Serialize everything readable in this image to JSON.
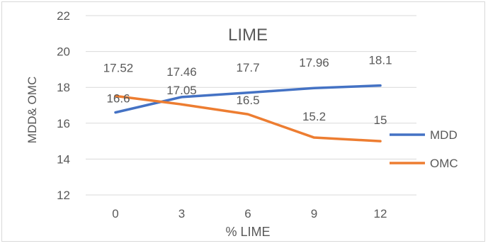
{
  "chart_data": {
    "type": "line",
    "title": "LIME",
    "xlabel": "% LIME",
    "ylabel": "MDD& OMC",
    "categories": [
      "0",
      "3",
      "6",
      "9",
      "12"
    ],
    "ylim": [
      12,
      22
    ],
    "yticks": [
      "12",
      "14",
      "16",
      "18",
      "20",
      "22"
    ],
    "grid": true,
    "legend_position": "right",
    "series": [
      {
        "name": "MDD",
        "color": "#4472c4",
        "values": [
          16.6,
          17.46,
          17.7,
          17.96,
          18.1
        ],
        "labels": [
          "16.6",
          "17.46",
          "17.7",
          "17.96",
          "18.1"
        ]
      },
      {
        "name": "OMC",
        "color": "#ed7d31",
        "values": [
          17.52,
          17.05,
          16.5,
          15.2,
          15.0
        ],
        "labels": [
          "17.52",
          "17.05",
          "16.5",
          "15.2",
          "15"
        ]
      }
    ]
  }
}
